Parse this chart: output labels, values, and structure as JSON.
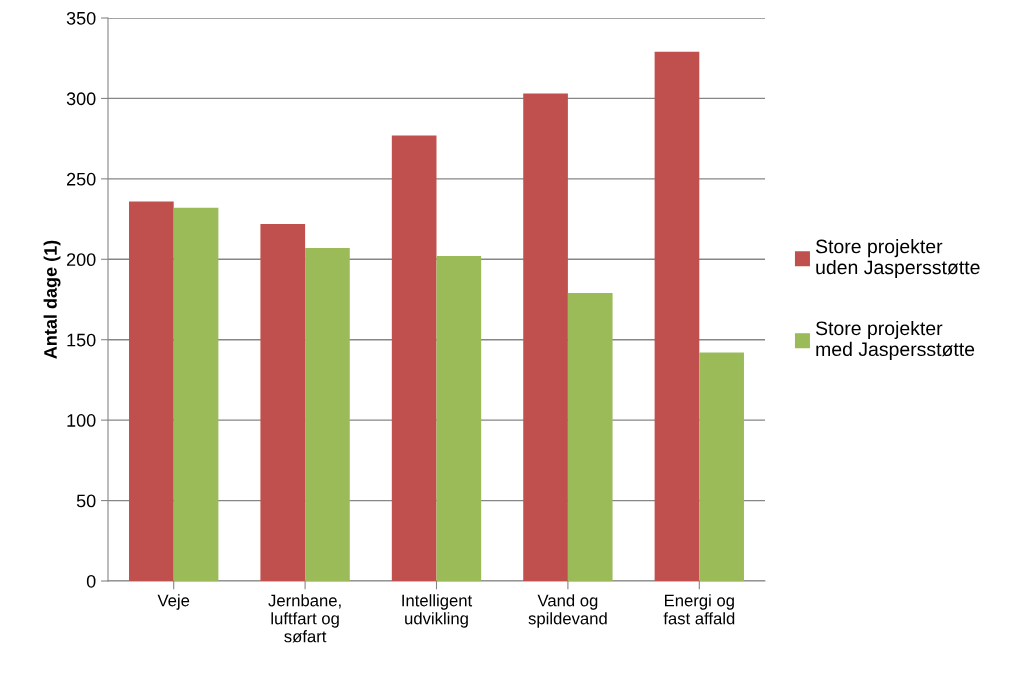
{
  "chart_data": {
    "type": "bar",
    "ylabel": "Antal dage (1)",
    "categories": [
      "Veje",
      "Jernbane,\nluftfart og\nsøfart",
      "Intelligent\nudvikling",
      "Vand og\nspildevand",
      "Energi og\nfast affald"
    ],
    "series": [
      {
        "name": "Store projekter\nuden Jaspersstøtte",
        "color": "#c0504d",
        "values": [
          236,
          222,
          277,
          303,
          329
        ]
      },
      {
        "name": "Store projekter\nmed Jaspersstøtte",
        "color": "#9bbb59",
        "values": [
          232,
          207,
          202,
          179,
          142
        ]
      }
    ],
    "ylim": [
      0,
      350
    ],
    "yticks": [
      0,
      50,
      100,
      150,
      200,
      250,
      300,
      350
    ],
    "grid": "y",
    "legend": "right"
  }
}
